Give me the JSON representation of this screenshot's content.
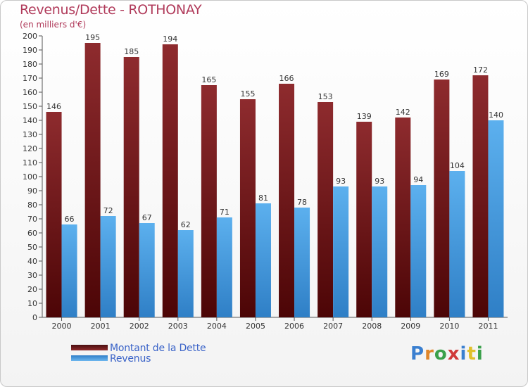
{
  "title": "Revenus/Dette - ROTHONAY",
  "subtitle": "(en milliers d'€)",
  "colors": {
    "title": "#b03a5a",
    "dette": "#7a1f22",
    "revenus": "#4a9fe0",
    "legend_text": "#3a63c8"
  },
  "chart_data": {
    "type": "bar",
    "categories": [
      "2000",
      "2001",
      "2002",
      "2003",
      "2004",
      "2005",
      "2006",
      "2007",
      "2008",
      "2009",
      "2010",
      "2011"
    ],
    "series": [
      {
        "name": "Montant de la Dette",
        "values": [
          146,
          195,
          185,
          194,
          165,
          155,
          166,
          153,
          139,
          142,
          169,
          172
        ]
      },
      {
        "name": "Revenus",
        "values": [
          66,
          72,
          67,
          62,
          71,
          81,
          78,
          93,
          93,
          94,
          104,
          140
        ]
      }
    ],
    "ylim": [
      0,
      200
    ],
    "ytick_step": 10,
    "grid": false,
    "legend": "bottom-left"
  },
  "legend": {
    "dette_label": "Montant de la Dette",
    "revenus_label": "Revenus"
  },
  "logo": {
    "letters": [
      "P",
      "r",
      "o",
      "x",
      "i",
      "t",
      "i"
    ],
    "colors": [
      "#3a7fd0",
      "#e0862a",
      "#3aa04a",
      "#d03a3a",
      "#3a7fd0",
      "#e0c02a",
      "#3aa04a"
    ]
  }
}
